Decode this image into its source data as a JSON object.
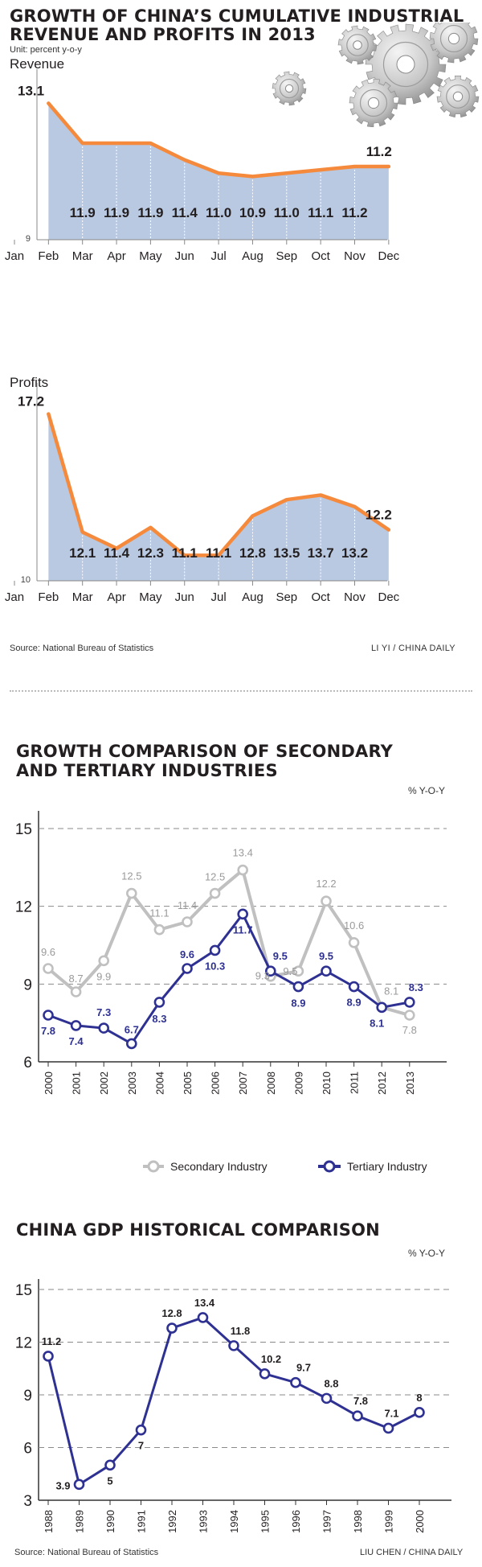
{
  "section1": {
    "title_line1": "GROWTH OF CHINA’S CUMULATIVE INDUSTRIAL",
    "title_line2": "REVENUE AND PROFITS IN 2013",
    "unit": "Unit: percent y-o-y",
    "source": "Source: National Bureau of Statistics",
    "credit": "LI YI / CHINA DAILY"
  },
  "section2": {
    "title_line1": "GROWTH COMPARISON OF SECONDARY",
    "title_line2": "AND TERTIARY INDUSTRIES",
    "unit": "% Y-O-Y"
  },
  "section3": {
    "title": "CHINA GDP HISTORICAL COMPARISON",
    "unit": "% Y-O-Y",
    "source": "Source: National Bureau of Statistics",
    "credit": "LIU CHEN / CHINA DAILY"
  },
  "colors": {
    "orange": "#f58a3c",
    "area_fill": "#b9c9e2",
    "gray_line": "#c0c0c0",
    "navy_line": "#2e3192",
    "gray_label": "#9a9a9a"
  },
  "icons": [
    "gears-illustration"
  ],
  "chart_data": [
    {
      "type": "area",
      "title": "Revenue",
      "x_ticks": [
        "Jan",
        "Feb",
        "Mar",
        "Apr",
        "May",
        "Jun",
        "Jul",
        "Aug",
        "Sep",
        "Oct",
        "Nov",
        "Dec"
      ],
      "x": [
        "Feb",
        "Mar",
        "Apr",
        "May",
        "Jun",
        "Jul",
        "Aug",
        "Sep",
        "Oct",
        "Nov",
        "Dec"
      ],
      "values": [
        13.1,
        11.9,
        11.9,
        11.9,
        11.4,
        11.0,
        10.9,
        11.0,
        11.1,
        11.2,
        11.2
      ],
      "value_labels": [
        "13.1",
        "11.9",
        "11.9",
        "11.9",
        "11.4",
        "11.0",
        "10.9",
        "11.0",
        "11.1",
        "11.2",
        "11.2"
      ],
      "y_tick_label": "9",
      "ylim": [
        9,
        13.4
      ]
    },
    {
      "type": "area",
      "title": "Profits",
      "x_ticks": [
        "Jan",
        "Feb",
        "Mar",
        "Apr",
        "May",
        "Jun",
        "Jul",
        "Aug",
        "Sep",
        "Oct",
        "Nov",
        "Dec"
      ],
      "x": [
        "Feb",
        "Mar",
        "Apr",
        "May",
        "Jun",
        "Jul",
        "Aug",
        "Sep",
        "Oct",
        "Nov",
        "Dec"
      ],
      "values": [
        17.2,
        12.1,
        11.4,
        12.3,
        11.1,
        11.1,
        12.8,
        13.5,
        13.7,
        13.2,
        12.2
      ],
      "value_labels": [
        "17.2",
        "12.1",
        "11.4",
        "12.3",
        "11.1",
        "11.1",
        "12.8",
        "13.5",
        "13.7",
        "13.2",
        "12.2"
      ],
      "y_tick_label": "10",
      "ylim": [
        10,
        17.5
      ]
    },
    {
      "type": "line",
      "title": "GROWTH COMPARISON OF SECONDARY AND TERTIARY INDUSTRIES",
      "ylabel": "% Y-O-Y",
      "x": [
        "2000",
        "2001",
        "2002",
        "2003",
        "2004",
        "2005",
        "2006",
        "2007",
        "2008",
        "2009",
        "2010",
        "2011",
        "2012",
        "2013"
      ],
      "yticks": [
        "15",
        "12",
        "9",
        "6"
      ],
      "ylim": [
        6,
        15
      ],
      "grid": true,
      "legend_position": "bottom",
      "series": [
        {
          "name": "Secondary Industry",
          "values": [
            9.6,
            8.7,
            9.9,
            12.5,
            11.1,
            11.4,
            12.5,
            13.4,
            9.3,
            9.5,
            12.2,
            10.6,
            8.1,
            7.8
          ],
          "value_labels": [
            "9.6",
            "8.7",
            "9.9",
            "12.5",
            "11.1",
            "11.4",
            "12.5",
            "13.4",
            "9.3",
            "9.5",
            "12.2",
            "10.6",
            "8.1",
            "7.8"
          ]
        },
        {
          "name": "Tertiary Industry",
          "values": [
            7.8,
            7.4,
            7.3,
            6.7,
            8.3,
            9.6,
            10.3,
            11.7,
            9.5,
            8.9,
            9.5,
            8.9,
            8.1,
            8.3
          ],
          "value_labels": [
            "7.8",
            "7.4",
            "7.3",
            "6.7",
            "8.3",
            "9.6",
            "10.3",
            "11.7",
            "9.5",
            "8.9",
            "9.5",
            "8.9",
            "8.1",
            "8.3"
          ]
        }
      ]
    },
    {
      "type": "line",
      "title": "CHINA GDP HISTORICAL COMPARISON",
      "ylabel": "% Y-O-Y",
      "x": [
        "1988",
        "1989",
        "1990",
        "1991",
        "1992",
        "1993",
        "1994",
        "1995",
        "1996",
        "1997",
        "1998",
        "1999",
        "2000"
      ],
      "yticks": [
        "15",
        "12",
        "9",
        "6",
        "3"
      ],
      "ylim": [
        3,
        15
      ],
      "grid": true,
      "values": [
        11.2,
        3.9,
        5,
        7,
        12.8,
        13.4,
        11.8,
        10.2,
        9.7,
        8.8,
        7.8,
        7.1,
        8
      ],
      "value_labels": [
        "11.2",
        "3.9",
        "5",
        "7",
        "12.8",
        "13.4",
        "11.8",
        "10.2",
        "9.7",
        "8.8",
        "7.8",
        "7.1",
        "8"
      ]
    }
  ]
}
